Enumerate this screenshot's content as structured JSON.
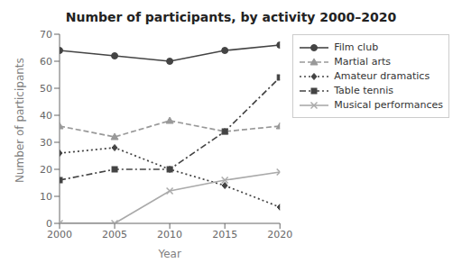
{
  "chart_data": {
    "type": "line",
    "title": "Number of participants, by activity 2000–2020",
    "xlabel": "Year",
    "ylabel": "Number of participants",
    "x": [
      2000,
      2005,
      2010,
      2015,
      2020
    ],
    "series": [
      {
        "name": "Film club",
        "color": "#444444",
        "marker": "circle",
        "line_style": "solid",
        "values": [
          64,
          62,
          60,
          64,
          66
        ]
      },
      {
        "name": "Martial arts",
        "color": "#999999",
        "marker": "triangle",
        "line_style": "dashed",
        "values": [
          36,
          32,
          38,
          34,
          36
        ]
      },
      {
        "name": "Amateur dramatics",
        "color": "#444444",
        "marker": "diamond",
        "line_style": "dotted",
        "values": [
          26,
          28,
          20,
          14,
          6
        ]
      },
      {
        "name": "Table tennis",
        "color": "#444444",
        "marker": "square",
        "line_style": "dashdot",
        "values": [
          16,
          20,
          20,
          34,
          54
        ]
      },
      {
        "name": "Musical performances",
        "color": "#aaaaaa",
        "marker": "x",
        "line_style": "solid",
        "values": [
          0,
          0,
          12,
          16,
          19
        ]
      }
    ],
    "xlim": [
      2000,
      2020
    ],
    "xticks": [
      2000,
      2005,
      2010,
      2015,
      2020
    ],
    "ylim": [
      0,
      70
    ],
    "yticks": [
      0,
      10,
      20,
      30,
      40,
      50,
      60,
      70
    ],
    "grid": false,
    "legend": "right"
  }
}
